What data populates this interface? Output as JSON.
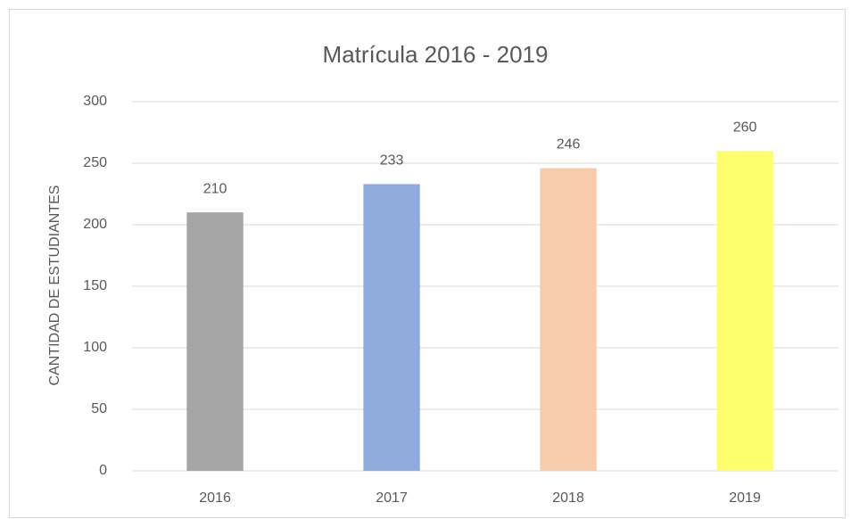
{
  "chart_data": {
    "type": "bar",
    "title": "Matrícula 2016 - 2019",
    "y_axis_label": "CANTIDAD DE ESTUDIANTES",
    "categories": [
      "2016",
      "2017",
      "2018",
      "2019"
    ],
    "values": [
      210,
      233,
      246,
      260
    ],
    "colors": [
      "#a5a5a5",
      "#8faadc",
      "#f8cbad",
      "#ffff6d"
    ],
    "ylim": [
      0,
      300
    ],
    "yticks": [
      0,
      50,
      100,
      150,
      200,
      250,
      300
    ],
    "grid": true
  }
}
